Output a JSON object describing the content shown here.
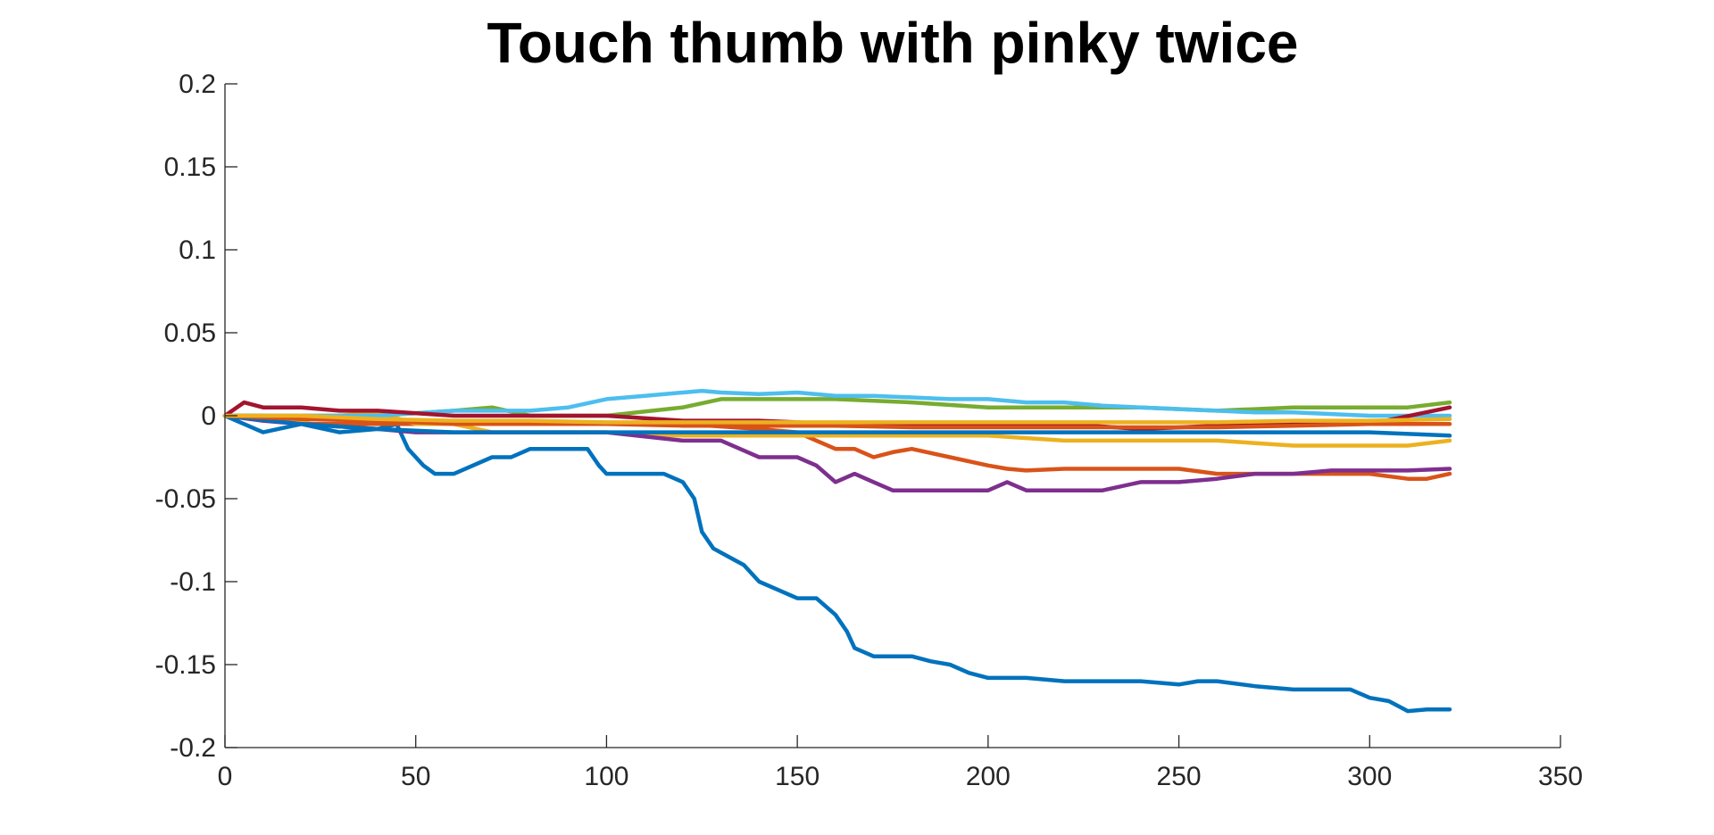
{
  "chart_data": {
    "type": "line",
    "title": "Touch thumb with pinky twice",
    "xlabel": "",
    "ylabel": "",
    "xlim": [
      0,
      350
    ],
    "ylim": [
      -0.2,
      0.2
    ],
    "xticks": [
      0,
      50,
      100,
      150,
      200,
      250,
      300,
      350
    ],
    "xtick_labels": [
      "0",
      "50",
      "100",
      "150",
      "200",
      "250",
      "300",
      "350"
    ],
    "yticks": [
      0.2,
      0.15,
      0.1,
      0.05,
      0,
      -0.05,
      -0.1,
      -0.15,
      -0.2
    ],
    "ytick_labels": [
      "0.2",
      "0.15",
      "0.1",
      "0.05",
      "0",
      "-0.05",
      "-0.1",
      "-0.15",
      "-0.2"
    ],
    "grid": false,
    "legend": "none",
    "series": [
      {
        "color": "#0072BD",
        "x": [
          0,
          5,
          10,
          20,
          30,
          40,
          45,
          48,
          52,
          55,
          60,
          65,
          70,
          75,
          80,
          85,
          90,
          95,
          98,
          100,
          105,
          110,
          115,
          120,
          123,
          125,
          128,
          132,
          136,
          140,
          145,
          150,
          155,
          160,
          163,
          165,
          170,
          175,
          180,
          185,
          190,
          195,
          200,
          210,
          220,
          230,
          240,
          250,
          255,
          260,
          270,
          280,
          290,
          295,
          300,
          305,
          310,
          315,
          321
        ],
        "y": [
          0,
          -0.005,
          -0.01,
          -0.005,
          -0.01,
          -0.008,
          -0.005,
          -0.02,
          -0.03,
          -0.035,
          -0.035,
          -0.03,
          -0.025,
          -0.025,
          -0.02,
          -0.02,
          -0.02,
          -0.02,
          -0.03,
          -0.035,
          -0.035,
          -0.035,
          -0.035,
          -0.04,
          -0.05,
          -0.07,
          -0.08,
          -0.085,
          -0.09,
          -0.1,
          -0.105,
          -0.11,
          -0.11,
          -0.12,
          -0.13,
          -0.14,
          -0.145,
          -0.145,
          -0.145,
          -0.148,
          -0.15,
          -0.155,
          -0.158,
          -0.158,
          -0.16,
          -0.16,
          -0.16,
          -0.162,
          -0.16,
          -0.16,
          -0.163,
          -0.165,
          -0.165,
          -0.165,
          -0.17,
          -0.172,
          -0.178,
          -0.177,
          -0.177
        ]
      },
      {
        "color": "#D95319",
        "x": [
          0,
          10,
          20,
          40,
          60,
          80,
          100,
          120,
          140,
          150,
          155,
          160,
          165,
          170,
          175,
          180,
          190,
          200,
          205,
          210,
          220,
          230,
          240,
          250,
          260,
          270,
          280,
          290,
          300,
          310,
          315,
          321
        ],
        "y": [
          0,
          0,
          -0.005,
          -0.005,
          -0.005,
          -0.005,
          -0.005,
          -0.005,
          -0.008,
          -0.01,
          -0.015,
          -0.02,
          -0.02,
          -0.025,
          -0.022,
          -0.02,
          -0.025,
          -0.03,
          -0.032,
          -0.033,
          -0.032,
          -0.032,
          -0.032,
          -0.032,
          -0.035,
          -0.035,
          -0.035,
          -0.035,
          -0.035,
          -0.038,
          -0.038,
          -0.035
        ]
      },
      {
        "color": "#EDB120",
        "x": [
          0,
          10,
          20,
          30,
          40,
          50,
          60,
          70,
          80,
          90,
          100,
          120,
          140,
          160,
          180,
          200,
          220,
          240,
          260,
          280,
          300,
          310,
          321
        ],
        "y": [
          0,
          0,
          -0.003,
          0,
          0.002,
          -0.005,
          -0.005,
          -0.01,
          -0.01,
          -0.01,
          -0.01,
          -0.012,
          -0.012,
          -0.012,
          -0.012,
          -0.012,
          -0.015,
          -0.015,
          -0.015,
          -0.018,
          -0.018,
          -0.018,
          -0.015
        ]
      },
      {
        "color": "#7E2F8E",
        "x": [
          0,
          10,
          20,
          40,
          50,
          60,
          80,
          100,
          120,
          130,
          140,
          145,
          150,
          155,
          160,
          165,
          170,
          175,
          180,
          190,
          200,
          205,
          210,
          220,
          230,
          240,
          250,
          260,
          270,
          280,
          290,
          300,
          310,
          321
        ],
        "y": [
          0,
          -0.003,
          -0.005,
          -0.008,
          -0.01,
          -0.01,
          -0.01,
          -0.01,
          -0.015,
          -0.015,
          -0.025,
          -0.025,
          -0.025,
          -0.03,
          -0.04,
          -0.035,
          -0.04,
          -0.045,
          -0.045,
          -0.045,
          -0.045,
          -0.04,
          -0.045,
          -0.045,
          -0.045,
          -0.04,
          -0.04,
          -0.038,
          -0.035,
          -0.035,
          -0.033,
          -0.033,
          -0.033,
          -0.032
        ]
      },
      {
        "color": "#77AC30",
        "x": [
          0,
          20,
          40,
          60,
          70,
          80,
          100,
          120,
          130,
          140,
          160,
          180,
          200,
          220,
          240,
          260,
          280,
          300,
          310,
          321
        ],
        "y": [
          0,
          0,
          0,
          0.003,
          0.005,
          0,
          0,
          0.005,
          0.01,
          0.01,
          0.01,
          0.008,
          0.005,
          0.005,
          0.005,
          0.003,
          0.005,
          0.005,
          0.005,
          0.008
        ]
      },
      {
        "color": "#4DBEEE",
        "x": [
          0,
          20,
          40,
          60,
          80,
          90,
          100,
          110,
          120,
          125,
          130,
          140,
          150,
          160,
          170,
          180,
          190,
          200,
          210,
          220,
          230,
          240,
          250,
          260,
          270,
          280,
          290,
          300,
          310,
          321
        ],
        "y": [
          0,
          0,
          0,
          0.003,
          0.003,
          0.005,
          0.01,
          0.012,
          0.014,
          0.015,
          0.014,
          0.013,
          0.014,
          0.012,
          0.012,
          0.011,
          0.01,
          0.01,
          0.008,
          0.008,
          0.006,
          0.005,
          0.004,
          0.003,
          0.002,
          0.002,
          0.001,
          0,
          0,
          0
        ]
      },
      {
        "color": "#A2142F",
        "x": [
          0,
          5,
          10,
          20,
          30,
          40,
          60,
          80,
          100,
          120,
          140,
          160,
          180,
          200,
          220,
          240,
          260,
          280,
          300,
          321
        ],
        "y": [
          0,
          0.008,
          0.005,
          0.005,
          0.003,
          0.003,
          0,
          0,
          0,
          -0.003,
          -0.003,
          -0.005,
          -0.005,
          -0.005,
          -0.005,
          -0.008,
          -0.006,
          -0.005,
          -0.005,
          0.005
        ]
      },
      {
        "color": "#0072BD",
        "x": [
          0,
          20,
          40,
          60,
          80,
          100,
          120,
          140,
          160,
          180,
          200,
          220,
          240,
          260,
          280,
          300,
          321
        ],
        "y": [
          0,
          -0.005,
          -0.008,
          -0.01,
          -0.01,
          -0.01,
          -0.01,
          -0.01,
          -0.01,
          -0.01,
          -0.01,
          -0.01,
          -0.01,
          -0.01,
          -0.01,
          -0.01,
          -0.012
        ]
      },
      {
        "color": "#D95319",
        "x": [
          0,
          20,
          40,
          60,
          80,
          100,
          120,
          140,
          160,
          180,
          200,
          220,
          240,
          260,
          280,
          300,
          321
        ],
        "y": [
          0,
          -0.002,
          -0.003,
          -0.005,
          -0.005,
          -0.005,
          -0.006,
          -0.006,
          -0.006,
          -0.007,
          -0.007,
          -0.007,
          -0.007,
          -0.007,
          -0.006,
          -0.005,
          -0.005
        ]
      },
      {
        "color": "#EDB120",
        "x": [
          0,
          20,
          40,
          60,
          80,
          100,
          120,
          140,
          160,
          180,
          200,
          220,
          240,
          260,
          280,
          300,
          321
        ],
        "y": [
          0,
          0,
          -0.002,
          -0.003,
          -0.003,
          -0.004,
          -0.004,
          -0.004,
          -0.004,
          -0.004,
          -0.004,
          -0.004,
          -0.004,
          -0.004,
          -0.003,
          -0.003,
          -0.002
        ]
      }
    ]
  }
}
